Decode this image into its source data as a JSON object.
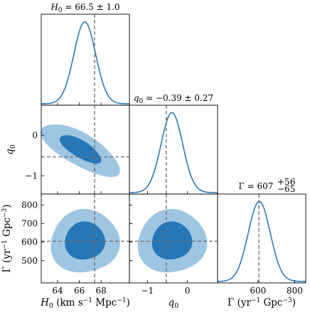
{
  "chart_data": {
    "type": "corner",
    "colors": {
      "line": "#2e7ab8",
      "contour_inner": "#2677b8",
      "contour_outer": "#9ec6e2",
      "truth": "#6b6b6b"
    },
    "parameters": [
      {
        "id": "H0",
        "title": "H_0 = 66.5 ± 1.0",
        "axis_label": "H_0 (km s⁻¹ Mpc⁻¹)",
        "range": [
          62.5,
          70.6
        ],
        "ticks": [
          64,
          66,
          68
        ],
        "median": 66.5,
        "sigma": 1.0,
        "truth": 67.4
      },
      {
        "id": "q0",
        "title": "q_0 = −0.39 ± 0.27",
        "axis_label": "q_0",
        "range": [
          -1.45,
          0.75
        ],
        "ticks": [
          -1,
          0
        ],
        "tick_labels": [
          "−1",
          "0"
        ],
        "median": -0.39,
        "sigma": 0.27,
        "truth": -0.53
      },
      {
        "id": "Gamma",
        "title": "Γ = 607 +56 −65",
        "axis_label": "Γ (yr⁻¹ Gpc⁻³)",
        "range": [
          380,
          860
        ],
        "ticks": [
          500,
          600,
          700,
          800
        ],
        "ticks_x": [
          600,
          800
        ],
        "median": 607,
        "err_plus": 56,
        "err_minus": 65,
        "truth": 605
      }
    ],
    "correlations": {
      "H0_q0": -0.85,
      "H0_Gamma": 0.0,
      "q0_Gamma": 0.0
    },
    "contour_levels": [
      "1-sigma",
      "2-sigma"
    ]
  }
}
